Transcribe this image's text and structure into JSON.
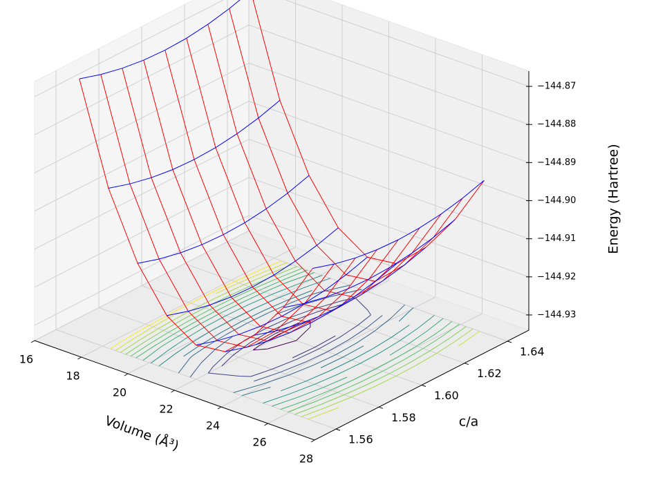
{
  "chart_data": {
    "type": "surface3d",
    "xlabel": "Volume (Å³)",
    "ylabel": "c/a",
    "zlabel": "Energy (Hartree)",
    "x": [
      17,
      18.25,
      19.5,
      20.75,
      22,
      23.25,
      24.5,
      25.75,
      27
    ],
    "y": [
      1.56,
      1.57,
      1.58,
      1.59,
      1.6,
      1.61,
      1.62,
      1.63,
      1.64
    ],
    "z": [
      [
        -144.866,
        -144.892,
        -144.909,
        -144.92,
        -144.925,
        -144.924,
        -144.917,
        -144.907,
        -144.894
      ],
      [
        -144.86775,
        -144.89375,
        -144.91075,
        -144.92175,
        -144.92675,
        -144.92575,
        -144.91875,
        -144.90875,
        -144.89575
      ],
      [
        -144.869,
        -144.895,
        -144.912,
        -144.923,
        -144.928,
        -144.927,
        -144.92,
        -144.91,
        -144.897
      ],
      [
        -144.86975,
        -144.89575,
        -144.91275,
        -144.92375,
        -144.92875,
        -144.92775,
        -144.92075,
        -144.91075,
        -144.89775
      ],
      [
        -144.87,
        -144.896,
        -144.913,
        -144.924,
        -144.929,
        -144.928,
        -144.921,
        -144.911,
        -144.898
      ],
      [
        -144.86975,
        -144.89575,
        -144.91275,
        -144.92375,
        -144.92875,
        -144.92775,
        -144.92075,
        -144.91075,
        -144.89775
      ],
      [
        -144.869,
        -144.895,
        -144.912,
        -144.923,
        -144.928,
        -144.927,
        -144.92,
        -144.91,
        -144.897
      ],
      [
        -144.86775,
        -144.89375,
        -144.91075,
        -144.92175,
        -144.92675,
        -144.92575,
        -144.91875,
        -144.90875,
        -144.89575
      ],
      [
        -144.866,
        -144.892,
        -144.909,
        -144.92,
        -144.925,
        -144.924,
        -144.917,
        -144.907,
        -144.894
      ]
    ],
    "row_color": "#ff0000",
    "col_color": "#0000ff",
    "contour_levels": [
      -144.9285,
      -144.928,
      -144.927,
      -144.926,
      -144.924,
      -144.922,
      -144.92,
      -144.917,
      -144.914,
      -144.911,
      -144.908,
      -144.905,
      -144.902,
      -144.899,
      -144.896,
      -144.893
    ],
    "contour_colors": [
      "#440154",
      "#3b528b",
      "#21918c",
      "#5ec962",
      "#fde725"
    ],
    "xlim": [
      16,
      28
    ],
    "ylim": [
      1.55,
      1.65
    ],
    "zlim": [
      -144.934,
      -144.866
    ],
    "xticks": [
      16,
      18,
      20,
      22,
      24,
      26,
      28
    ],
    "yticks": [
      1.56,
      1.58,
      {
        "value": 1.6,
        "label": "1.60"
      },
      1.62,
      1.64
    ],
    "zticks": [
      {
        "value": -144.93,
        "label": "−144.93"
      },
      {
        "value": -144.92,
        "label": "−144.92"
      },
      {
        "value": -144.91,
        "label": "−144.91"
      },
      {
        "value": -144.9,
        "label": "−144.90"
      },
      {
        "value": -144.89,
        "label": "−144.89"
      },
      {
        "value": -144.88,
        "label": "−144.88"
      },
      {
        "value": -144.87,
        "label": "−144.87"
      }
    ],
    "grid": true
  }
}
